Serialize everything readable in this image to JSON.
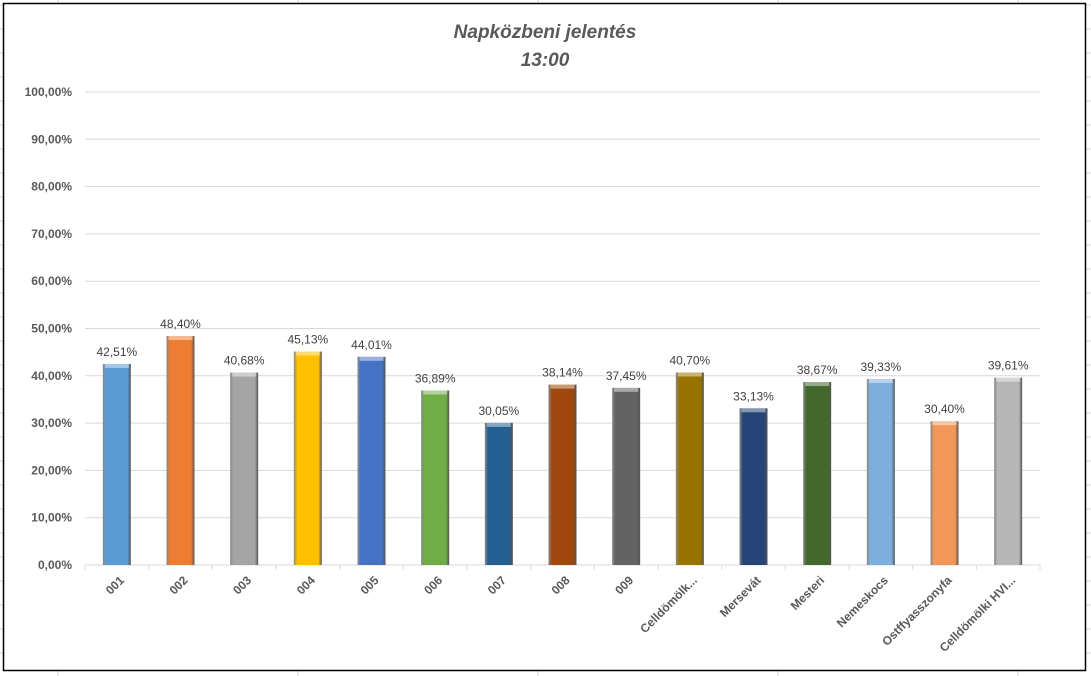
{
  "chart_data": {
    "type": "bar",
    "title": "Napközbeni jelentés",
    "subtitle": "13:00",
    "xlabel": "",
    "ylabel": "",
    "ylim": [
      0,
      100
    ],
    "yticks": [
      "0,00%",
      "10,00%",
      "20,00%",
      "30,00%",
      "40,00%",
      "50,00%",
      "60,00%",
      "70,00%",
      "80,00%",
      "90,00%",
      "100,00%"
    ],
    "grid": true,
    "legend": "none",
    "categories": [
      "001",
      "002",
      "003",
      "004",
      "005",
      "006",
      "007",
      "008",
      "009",
      "Celldömölk...",
      "Mersevát",
      "Mesteri",
      "Nemeskocs",
      "Ostffyasszonyfa",
      "Celldömölki HVI..."
    ],
    "values": [
      42.51,
      48.4,
      40.68,
      45.13,
      44.01,
      36.89,
      30.05,
      38.14,
      37.45,
      40.7,
      33.13,
      38.67,
      39.33,
      30.4,
      39.61
    ],
    "labels": [
      "42,51%",
      "48,40%",
      "40,68%",
      "45,13%",
      "44,01%",
      "36,89%",
      "30,05%",
      "38,14%",
      "37,45%",
      "40,70%",
      "33,13%",
      "38,67%",
      "39,33%",
      "30,40%",
      "39,61%"
    ],
    "colors": [
      "#5B9BD5",
      "#ED7D31",
      "#A5A5A5",
      "#FFC000",
      "#4472C4",
      "#70AD47",
      "#255E91",
      "#9E480E",
      "#636363",
      "#997300",
      "#264478",
      "#43682B",
      "#7CAFDD",
      "#F1975A",
      "#B7B7B7"
    ]
  }
}
